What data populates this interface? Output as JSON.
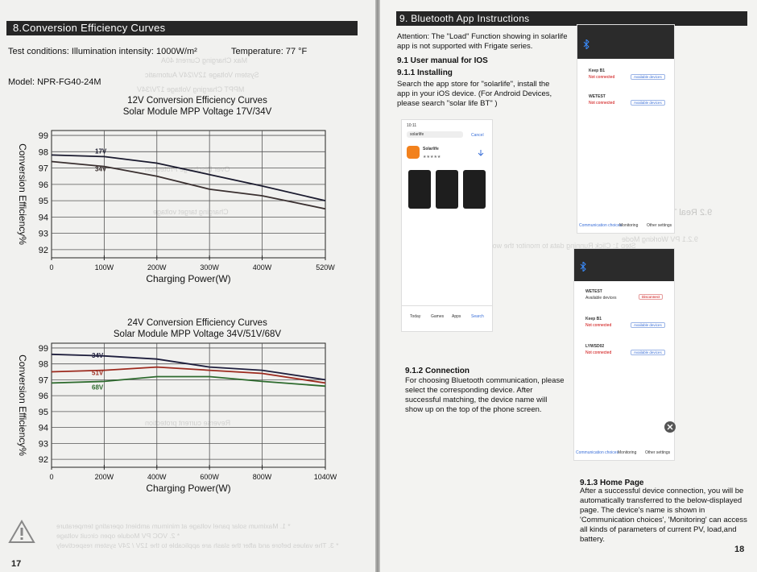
{
  "left": {
    "section_title": "8.Conversion Efficiency Curves",
    "test_conditions": "Test conditions:  Illumination intensity: 1000W/m²",
    "temperature": "Temperature: 77 °F",
    "model": "Model:  NPR-FG40-24M",
    "page_number": "17"
  },
  "chart_data": [
    {
      "type": "line",
      "title": "12V Conversion Efficiency Curves",
      "subtitle": "Solar Module MPP Voltage 17V/34V",
      "xlabel": "Charging Power(W)",
      "ylabel": "Conversion Efficiency%",
      "x_ticks": [
        "0",
        "100W",
        "200W",
        "300W",
        "400W",
        "520W"
      ],
      "y_ticks": [
        "99",
        "98",
        "97",
        "96",
        "95",
        "94",
        "93",
        "92"
      ],
      "ylim": [
        91.5,
        99.3
      ],
      "xlim": [
        0,
        520
      ],
      "x": [
        0,
        100,
        200,
        300,
        400,
        520
      ],
      "series": [
        {
          "name": "17V",
          "color": "#1a1a2e",
          "values": [
            97.8,
            97.7,
            97.3,
            96.6,
            95.9,
            95.0
          ]
        },
        {
          "name": "34V",
          "color": "#3a3030",
          "values": [
            97.4,
            97.1,
            96.5,
            95.7,
            95.3,
            94.5
          ]
        }
      ],
      "grid": true
    },
    {
      "type": "line",
      "title": "24V Conversion Efficiency Curves",
      "subtitle": "Solar Module MPP Voltage 34V/51V/68V",
      "xlabel": "Charging Power(W)",
      "ylabel": "Conversion Efficiency%",
      "x_ticks": [
        "0",
        "200W",
        "400W",
        "600W",
        "800W",
        "1040W"
      ],
      "y_ticks": [
        "99",
        "98",
        "97",
        "96",
        "95",
        "94",
        "93",
        "92"
      ],
      "ylim": [
        91.5,
        99.3
      ],
      "xlim": [
        0,
        1040
      ],
      "x": [
        0,
        200,
        400,
        600,
        800,
        1040
      ],
      "series": [
        {
          "name": "34V",
          "color": "#1e1e3c",
          "values": [
            98.6,
            98.5,
            98.3,
            97.8,
            97.6,
            97.0
          ]
        },
        {
          "name": "51V",
          "color": "#9c2a1e",
          "values": [
            97.5,
            97.6,
            97.8,
            97.6,
            97.4,
            96.8
          ]
        },
        {
          "name": "68V",
          "color": "#2d6a2d",
          "values": [
            96.8,
            96.9,
            97.2,
            97.2,
            96.9,
            96.6
          ]
        }
      ],
      "grid": true
    }
  ],
  "right": {
    "section_title": "9. Bluetooth App Instructions",
    "attention": "Attention: The \"Load\" Function showing in solarlife app is not supported with Frigate series.",
    "manual_ios": "9.1 User manual for IOS",
    "installing_title": "9.1.1 Installing",
    "installing_text": "Search the app store for \"solarlife\", install the app in your iOS device. (For Android Devices, please search \"solar life BT\" )",
    "connection_title": "9.1.2 Connection",
    "connection_text": "For choosing Bluetooth communication, please select the corresponding device. After successful matching, the device name will show up on the top of the phone screen.",
    "home_title": "9.1.3 Home Page",
    "home_text_1": "After a successful device connection, you will be automatically transferred to the below-displayed page. The device's name is shown in",
    "home_text_2": "'Communication choices', 'Monitoring' can access all kinds of parameters of current PV, load,and battery.",
    "page_number": "18",
    "phone_store": {
      "time": "10:11",
      "search_query": "solarlife",
      "cancel": "Cancel",
      "app_name": "Solarlife",
      "rating": "★★★★★",
      "tabs": [
        "Today",
        "Games",
        "Apps",
        "Search"
      ]
    },
    "phone_list_1": {
      "devices": [
        {
          "name": "Keep B1",
          "status": "Not connected",
          "action": "Available devices"
        },
        {
          "name": "WETEST",
          "status": "Not connected",
          "action": "Available devices"
        }
      ],
      "tabs": [
        "Communication choices",
        "Monitoring",
        "Other settings"
      ]
    },
    "phone_list_2": {
      "devices": [
        {
          "name": "WETEST",
          "status": "Available devices",
          "action": "Disconnect"
        },
        {
          "name": "Keep B1",
          "status": "Not connected",
          "action": "Available devices"
        },
        {
          "name": "LYWSD02",
          "status": "Not connected",
          "action": "Available devices"
        }
      ],
      "tabs": [
        "Communication choices",
        "Monitoring",
        "Other settings"
      ]
    }
  }
}
